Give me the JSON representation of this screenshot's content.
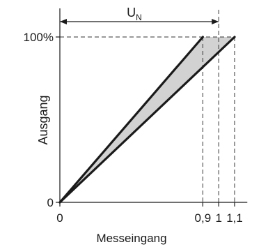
{
  "chart_data": {
    "type": "line",
    "xlabel": "Messeingang",
    "ylabel": "Ausgang",
    "range_label": {
      "main": "U",
      "sub": "N"
    },
    "xlim": [
      0,
      1.18
    ],
    "ylim": [
      0,
      100
    ],
    "x_ticks": [
      {
        "value": 0,
        "label": "0"
      },
      {
        "value": 0.9,
        "label": "0,9"
      },
      {
        "value": 1,
        "label": "1"
      },
      {
        "value": 1.1,
        "label": "1,1"
      }
    ],
    "y_ticks": [
      {
        "value": 0,
        "label": "0"
      },
      {
        "value": 100,
        "label": "100%"
      }
    ],
    "series": [
      {
        "points": [
          [
            0,
            0
          ],
          [
            0.9,
            100
          ]
        ]
      },
      {
        "points": [
          [
            0,
            0
          ],
          [
            1.1,
            100
          ]
        ]
      }
    ],
    "shaded_region": [
      [
        0,
        0
      ],
      [
        0.9,
        100
      ],
      [
        1.1,
        100
      ]
    ],
    "range_arrow": {
      "from": 0,
      "to": 1
    },
    "guides": {
      "horizontal_y": 100,
      "vertical_x": [
        0.9,
        1,
        1.1
      ]
    },
    "colors": {
      "line": "#1a1a1a",
      "fill": "#d2d2d2",
      "axis": "#1a1a1a",
      "guide": "#333333"
    }
  }
}
